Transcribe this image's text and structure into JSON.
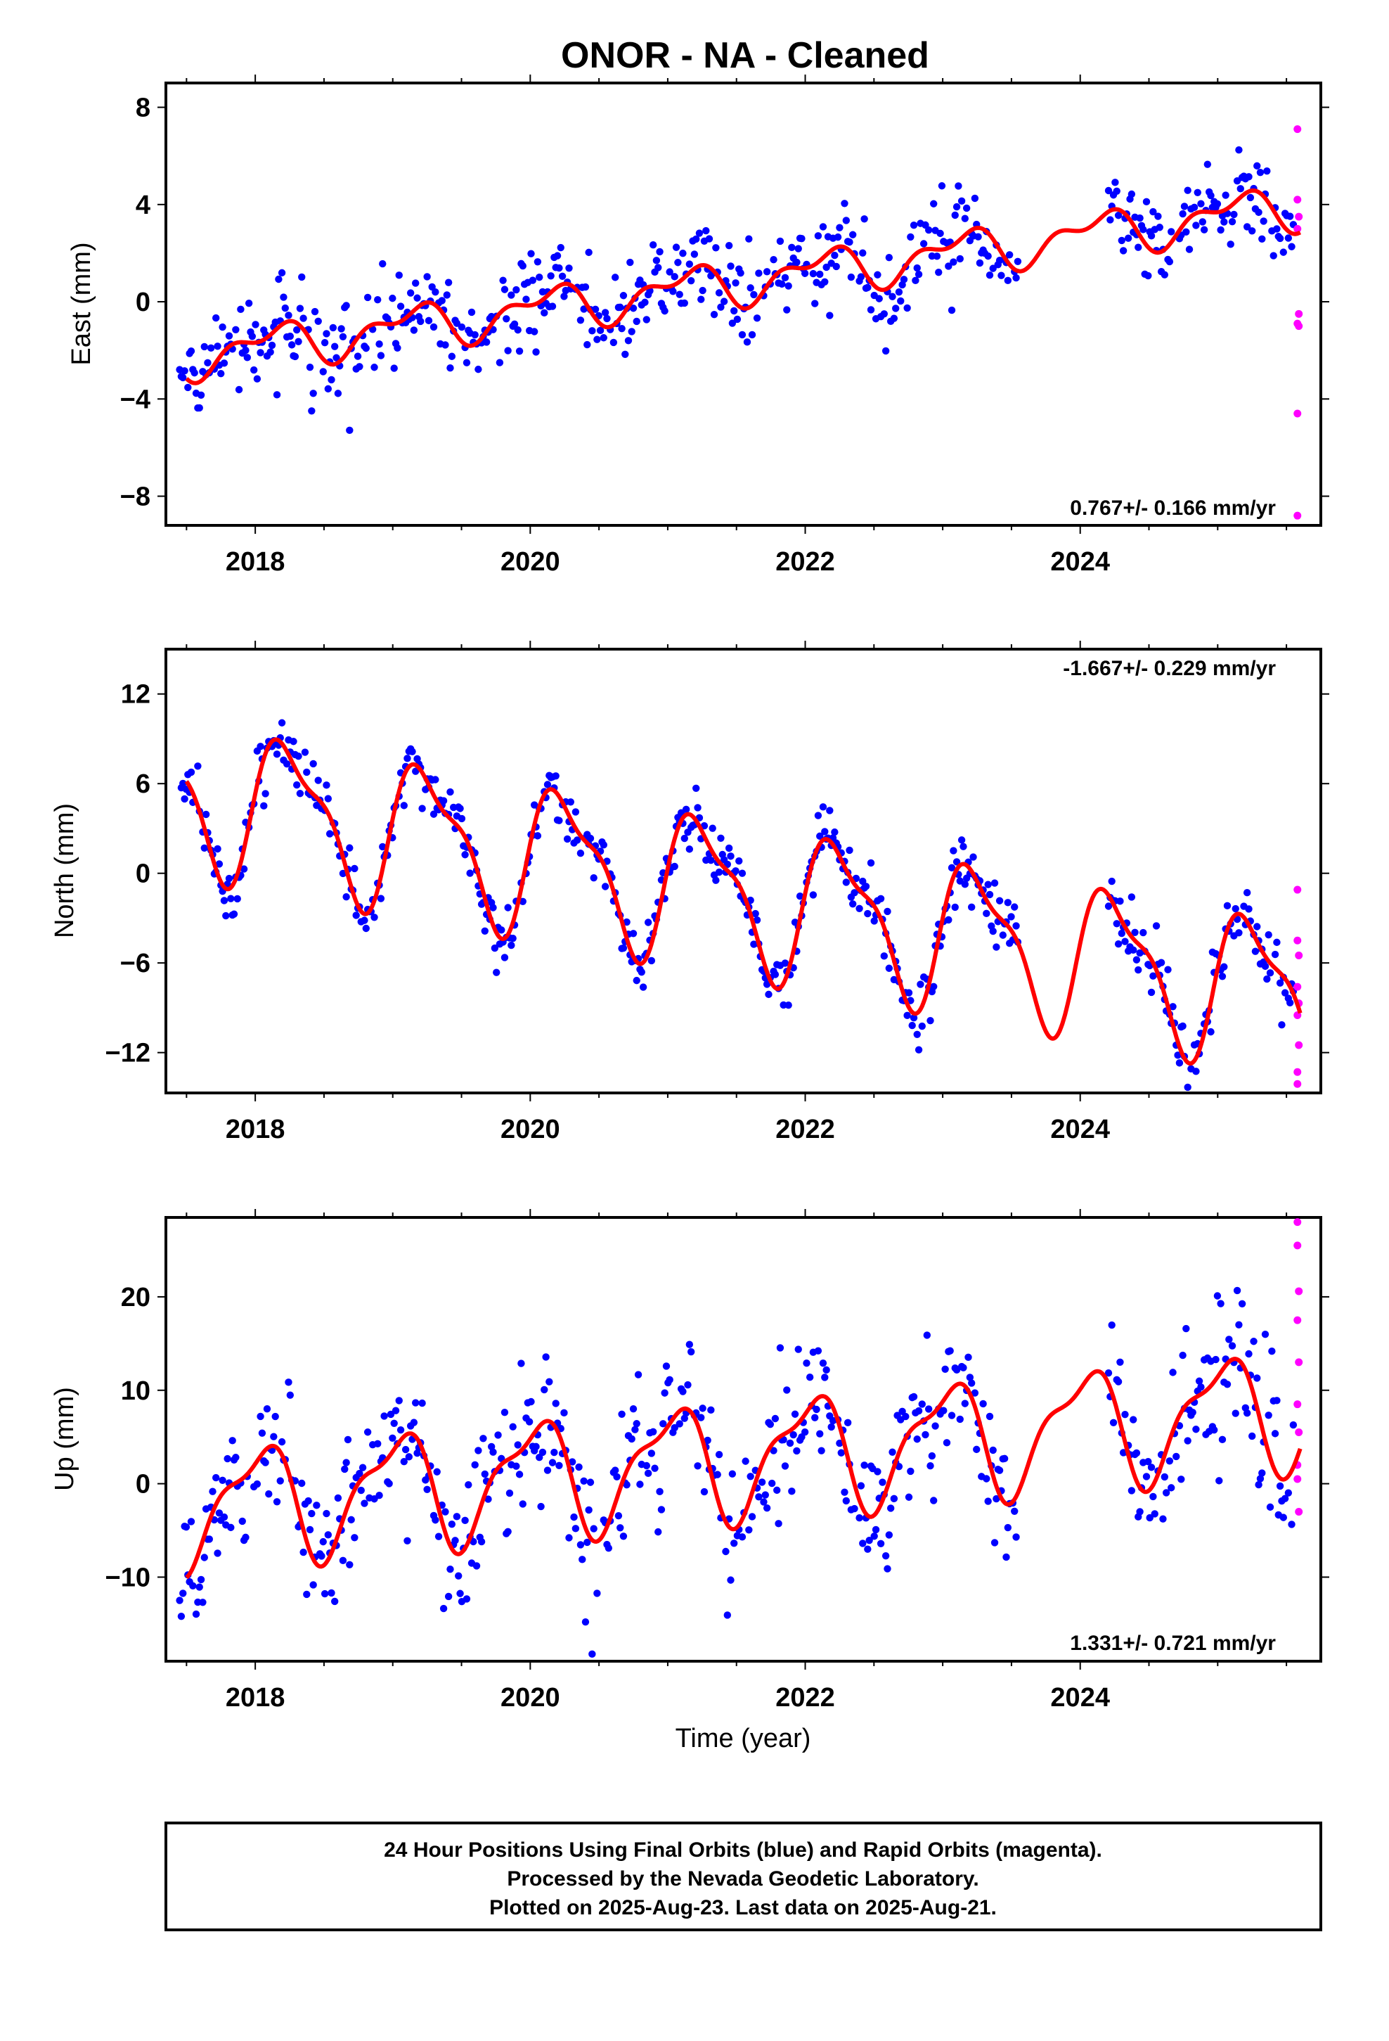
{
  "colors": {
    "final_orbits": "#0000ff",
    "rapid_orbits": "#ff00ff",
    "model_fit": "#ff0000",
    "frame": "#000000"
  },
  "chart_data": [
    {
      "type": "scatter",
      "title": "ONOR  - NA - Cleaned",
      "ylabel": "East (mm)",
      "xlabel": "",
      "xlim": [
        2017.35,
        2025.75
      ],
      "ylim": [
        -9.2,
        9.0
      ],
      "x_ticks": [
        2018,
        2020,
        2022,
        2024
      ],
      "x_tick_labels": [
        "2018",
        "2020",
        "2022",
        "2024"
      ],
      "y_ticks": [
        -8,
        -4,
        0,
        4,
        8
      ],
      "y_tick_labels": [
        "−8",
        "−4",
        "0",
        "4",
        "8"
      ],
      "rate_label": "0.767+/- 0.166 mm/yr",
      "rate_position": "bottom-right",
      "model": {
        "start": 2017.5,
        "end": 2025.6,
        "offset": -2.25,
        "rate": 0.767,
        "annual_amp": 0.75,
        "annual_phase": 0.12,
        "semiannual_amp": 0.45,
        "semiannual_phase": 0.3
      },
      "final_data": {
        "start": 2017.45,
        "end": 2025.55,
        "step": 0.012,
        "noise": 0.95,
        "gaps": [
          [
            2023.55,
            2024.2
          ]
        ]
      },
      "rapid_points": {
        "x": [
          2025.58,
          2025.58,
          2025.59,
          2025.58,
          2025.59,
          2025.58,
          2025.59,
          2025.58,
          2025.58
        ],
        "y": [
          7.1,
          4.2,
          3.5,
          3.0,
          -0.5,
          -0.9,
          -1.0,
          -4.6,
          -8.8
        ]
      }
    },
    {
      "type": "scatter",
      "title": "",
      "ylabel": "North (mm)",
      "xlabel": "",
      "xlim": [
        2017.35,
        2025.75
      ],
      "ylim": [
        -14.7,
        15.0
      ],
      "x_ticks": [
        2018,
        2020,
        2022,
        2024
      ],
      "x_tick_labels": [
        "2018",
        "2020",
        "2022",
        "2024"
      ],
      "y_ticks": [
        -12,
        -6,
        0,
        6,
        12
      ],
      "y_tick_labels": [
        "−12",
        "−6",
        "0",
        "6",
        "12"
      ],
      "rate_label": "-1.667+/- 0.229 mm/yr",
      "rate_position": "top-right",
      "model": {
        "start": 2017.5,
        "end": 2025.6,
        "offset": 5.3,
        "rate": -1.667,
        "annual_amp": 4.6,
        "annual_phase": 0.25,
        "semiannual_amp": 1.6,
        "semiannual_phase": 0.08
      },
      "final_data": {
        "start": 2017.45,
        "end": 2025.55,
        "step": 0.012,
        "noise": 1.05,
        "gaps": [
          [
            2023.55,
            2024.2
          ]
        ]
      },
      "rapid_points": {
        "x": [
          2025.58,
          2025.58,
          2025.59,
          2025.58,
          2025.59,
          2025.58,
          2025.59,
          2025.58,
          2025.58
        ],
        "y": [
          -1.1,
          -4.5,
          -5.5,
          -7.6,
          -8.7,
          -9.5,
          -11.5,
          -13.3,
          -14.1
        ]
      }
    },
    {
      "type": "scatter",
      "title": "",
      "ylabel": "Up (mm)",
      "xlabel": "Time (year)",
      "xlim": [
        2017.35,
        2025.75
      ],
      "ylim": [
        -19.0,
        28.5
      ],
      "x_ticks": [
        2018,
        2020,
        2022,
        2024
      ],
      "x_tick_labels": [
        "2018",
        "2020",
        "2022",
        "2024"
      ],
      "y_ticks": [
        -10,
        0,
        10,
        20
      ],
      "y_tick_labels": [
        "−10",
        "0",
        "10",
        "20"
      ],
      "rate_label": "1.331+/- 0.721 mm/yr",
      "rate_position": "bottom-right",
      "model": {
        "start": 2017.5,
        "end": 2025.6,
        "offset": -2.6,
        "rate": 1.331,
        "annual_amp": 5.8,
        "annual_phase": 0.02,
        "semiannual_amp": 2.1,
        "semiannual_phase": 0.2
      },
      "final_data": {
        "start": 2017.45,
        "end": 2025.55,
        "step": 0.012,
        "noise": 4.0,
        "gaps": [
          [
            2023.55,
            2024.2
          ]
        ]
      },
      "rapid_points": {
        "x": [
          2025.58,
          2025.58,
          2025.59,
          2025.58,
          2025.59,
          2025.58,
          2025.59,
          2025.58,
          2025.58,
          2025.59
        ],
        "y": [
          28.0,
          25.5,
          20.6,
          17.5,
          13.0,
          8.5,
          5.5,
          2.0,
          0.5,
          -3.0
        ]
      }
    }
  ],
  "footer": {
    "line1": "24 Hour Positions Using Final Orbits (blue) and Rapid Orbits (magenta).",
    "line2": "Processed by the Nevada Geodetic Laboratory.",
    "line3": "Plotted on 2025-Aug-23. Last data on 2025-Aug-21."
  }
}
